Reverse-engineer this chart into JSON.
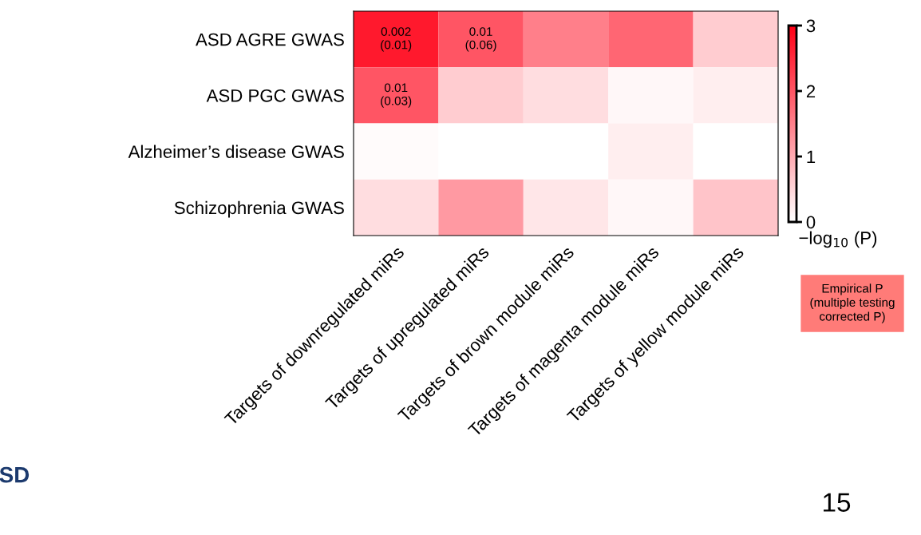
{
  "chart_data": {
    "type": "heatmap",
    "categories": [
      "Targets of downregulated miRs",
      "Targets of upregulated miRs",
      "Targets of brown module miRs",
      "Targets of magenta module miRs",
      "Targets of yellow module miRs"
    ],
    "y_categories": [
      "ASD AGRE GWAS",
      "ASD PGC GWAS",
      "Alzheimer’s disease GWAS",
      "Schizophrenia GWAS"
    ],
    "cells": [
      [
        2.7,
        2.0,
        1.5,
        1.8,
        0.6
      ],
      [
        2.0,
        0.6,
        0.4,
        0.1,
        0.2
      ],
      [
        0.05,
        0,
        0,
        0.2,
        0
      ],
      [
        0.4,
        1.2,
        0.3,
        0.1,
        0.7
      ]
    ],
    "cell_labels": [
      [
        "0.002\n(0.01)",
        "0.01\n(0.06)",
        null,
        null,
        null
      ],
      [
        "0.01\n(0.03)",
        null,
        null,
        null,
        null
      ],
      [
        null,
        null,
        null,
        null,
        null
      ],
      [
        null,
        null,
        null,
        null,
        null
      ]
    ],
    "clim": [
      0,
      3
    ],
    "cticks": [
      0,
      1,
      2,
      3
    ],
    "clabel": "−log$_{10}$ (P)",
    "annotations": [
      "Empirical P\n(multiple testing\ncorrected P)",
      "SD",
      "15"
    ]
  }
}
